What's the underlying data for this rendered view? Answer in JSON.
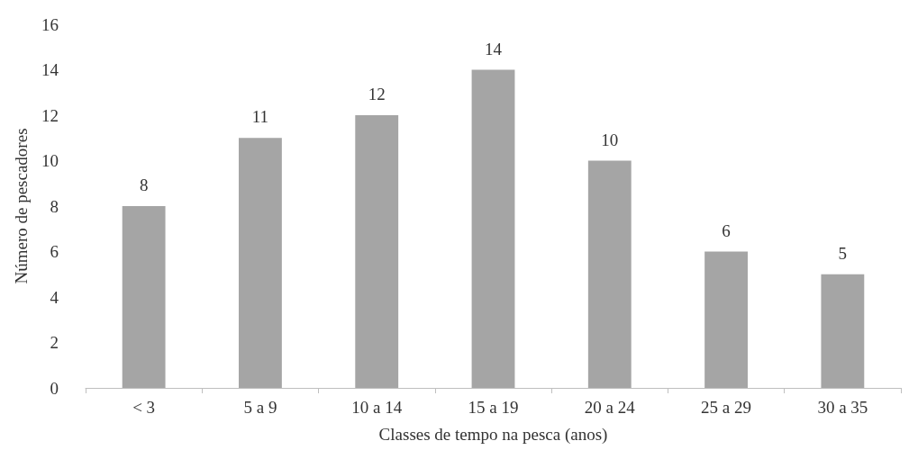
{
  "chart_data": {
    "type": "bar",
    "xlabel": "Classes de tempo na pesca (anos)",
    "ylabel": "Número de pescadores",
    "categories": [
      "< 3",
      "5 a 9",
      "10 a 14",
      "15 a 19",
      "20 a 24",
      "25 a 29",
      "30 a 35"
    ],
    "values": [
      8,
      11,
      12,
      14,
      10,
      6,
      5
    ],
    "color": "#a5a5a5",
    "ylim": [
      0,
      16
    ],
    "yticks": [
      0,
      2,
      4,
      6,
      8,
      10,
      12,
      14,
      16
    ],
    "grid": false,
    "data_labels": true
  }
}
